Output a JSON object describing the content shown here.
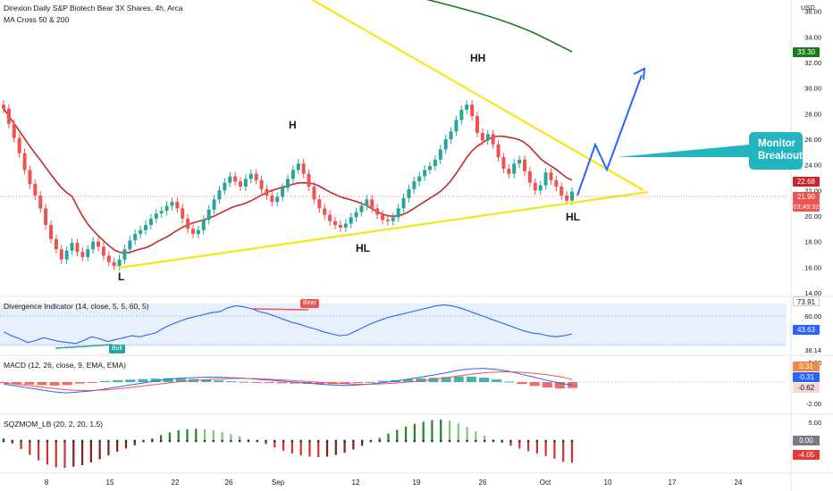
{
  "chart": {
    "symbol_line": "Direxion Daily S&P Biotech Bear 3X Shares, 4h, Arca",
    "ma_label": "MA Cross 50 & 200",
    "currency": "USD",
    "price_axis": [
      "36.00",
      "34.00",
      "32.00",
      "30.00",
      "28.00",
      "26.00",
      "24.00",
      "22.00",
      "20.00",
      "18.00",
      "16.00",
      "14.00"
    ],
    "price_tags": {
      "ma200": "33.30",
      "ma50": "22.68",
      "last": "21.90",
      "countdown": "03:49:32"
    },
    "annotations": {
      "H": "H",
      "HH": "HH",
      "HL_mid": "HL",
      "HL_right": "HL",
      "L": "L"
    },
    "callout": {
      "line1": "Monitor",
      "line2": "Breakout"
    },
    "x_axis": [
      "8",
      "15",
      "22",
      "26",
      "Sep",
      "12",
      "19",
      "26",
      "Oct",
      "10",
      "17",
      "24"
    ]
  },
  "divergence": {
    "label": "Divergence Indicator (14, close, 5, 5, 60, 5)",
    "bear": "Bear",
    "bull": "Bull",
    "axis": [
      "73.91",
      "60.00",
      "43.63",
      "38.14",
      "38.14"
    ]
  },
  "macd": {
    "label": "MACD (12, 26, close, 9, EMA, EMA)",
    "axis": [
      "2.00",
      "0.31",
      "-0.31",
      "-0.62",
      "-2.00"
    ]
  },
  "sqzmom": {
    "label": "SQZMOM_LB (20, 2, 20, 1.5)",
    "axis": [
      "5.00",
      "0.00",
      "-4.05"
    ]
  },
  "colors": {
    "bull": "#26a69a",
    "bear": "#ef5350",
    "ma50": "#c62828",
    "ma200": "#1b7a1b",
    "trend": "#f5e51b",
    "projection": "#2962ff",
    "callout": "#22b5c0"
  },
  "chart_data": [
    {
      "type": "line",
      "title": "Direxion Daily S&P Biotech Bear 3X Shares, 4h, Arca",
      "ylabel": "USD",
      "ylim": [
        14,
        36.5
      ],
      "series": [
        {
          "name": "close",
          "x_ticks": [
            "8",
            "15",
            "22",
            "26",
            "Sep",
            "12",
            "19",
            "26",
            "Oct"
          ],
          "values": [
            28.4,
            27.2,
            26.1,
            24.9,
            23.6,
            22.5,
            21.6,
            20.6,
            19.3,
            18.2,
            17.4,
            16.6,
            17.3,
            17.9,
            17.2,
            16.8,
            17.4,
            18.0,
            17.6,
            16.9,
            16.4,
            16.1,
            16.6,
            17.4,
            18.1,
            18.6,
            18.9,
            19.3,
            19.8,
            20.2,
            20.4,
            20.8,
            21.1,
            20.6,
            19.8,
            19.0,
            18.6,
            18.9,
            19.7,
            20.5,
            21.3,
            22.0,
            22.6,
            23.1,
            22.7,
            22.3,
            22.9,
            23.3,
            22.8,
            22.1,
            21.6,
            21.1,
            21.5,
            22.2,
            22.9,
            23.6,
            24.1,
            23.3,
            22.3,
            21.3,
            20.6,
            20.1,
            19.6,
            19.3,
            19.1,
            19.4,
            19.9,
            20.3,
            20.8,
            21.3,
            20.6,
            20.1,
            19.7,
            19.6,
            19.9,
            20.6,
            21.4,
            22.1,
            22.7,
            23.1,
            23.6,
            23.9,
            24.4,
            25.2,
            26.0,
            26.6,
            27.5,
            28.3,
            28.7,
            27.8,
            26.5,
            25.9,
            26.4,
            25.6,
            24.6,
            23.7,
            23.3,
            24.1,
            24.4,
            23.5,
            22.6,
            22.0,
            22.4,
            23.4,
            22.8,
            22.3,
            21.6,
            21.2,
            21.9
          ]
        }
      ]
    },
    {
      "type": "line",
      "title": "Divergence Indicator (14, close, 5, 5, 60, 5)",
      "ylim": [
        30,
        80
      ],
      "series": [
        {
          "name": "rsi",
          "values": [
            45,
            41,
            38,
            34,
            36,
            39,
            37,
            35,
            34,
            33,
            36,
            40,
            38,
            35,
            37,
            39,
            41,
            40,
            42,
            44,
            49,
            53,
            56,
            59,
            61,
            63,
            65,
            66,
            70,
            72,
            71,
            69,
            66,
            64,
            61,
            58,
            55,
            53,
            50,
            48,
            45,
            43,
            41,
            42,
            46,
            50,
            54,
            57,
            60,
            62,
            64,
            66,
            68,
            70,
            72,
            73,
            72,
            70,
            67,
            64,
            61,
            58,
            55,
            52,
            49,
            46,
            44,
            43,
            41,
            40,
            41,
            43
          ]
        }
      ]
    },
    {
      "type": "line",
      "title": "MACD (12, 26, close, 9, EMA, EMA)",
      "ylim": [
        -2.3,
        2.3
      ],
      "series": [
        {
          "name": "macd",
          "values": [
            -0.2,
            -0.4,
            -0.6,
            -0.8,
            -1.0,
            -1.1,
            -1.0,
            -0.9,
            -0.7,
            -0.5,
            -0.3,
            -0.1,
            0.1,
            0.3,
            0.4,
            0.45,
            0.5,
            0.5,
            0.45,
            0.4,
            0.3,
            0.2,
            0.1,
            0.0,
            -0.1,
            -0.2,
            -0.3,
            -0.35,
            -0.3,
            -0.2,
            -0.05,
            0.1,
            0.3,
            0.5,
            0.7,
            0.95,
            1.2,
            1.35,
            1.4,
            1.3,
            1.1,
            0.8,
            0.5,
            0.2,
            -0.1,
            -0.3
          ]
        },
        {
          "name": "signal",
          "values": [
            -0.1,
            -0.2,
            -0.35,
            -0.5,
            -0.65,
            -0.8,
            -0.85,
            -0.85,
            -0.8,
            -0.7,
            -0.55,
            -0.4,
            -0.25,
            -0.1,
            0.05,
            0.15,
            0.25,
            0.32,
            0.36,
            0.37,
            0.35,
            0.3,
            0.22,
            0.15,
            0.07,
            -0.02,
            -0.1,
            -0.17,
            -0.22,
            -0.22,
            -0.18,
            -0.1,
            0.0,
            0.12,
            0.27,
            0.44,
            0.63,
            0.8,
            0.95,
            1.03,
            1.05,
            1.0,
            0.9,
            0.75,
            0.55,
            0.3
          ]
        }
      ]
    },
    {
      "type": "bar",
      "title": "SQZMOM_LB (20, 2, 20, 1.5)",
      "ylim": [
        -5,
        5
      ],
      "series": [
        {
          "name": "momentum",
          "values": [
            0.5,
            -0.5,
            -1.5,
            -2.6,
            -3.6,
            -4.4,
            -4.9,
            -5.0,
            -4.8,
            -4.5,
            -4.0,
            -3.4,
            -2.7,
            -2.0,
            -1.4,
            -0.8,
            -0.2,
            0.5,
            1.1,
            1.6,
            2.0,
            2.2,
            2.3,
            2.2,
            2.0,
            1.7,
            1.3,
            0.9,
            0.4,
            0.0,
            -0.6,
            -1.2,
            -1.8,
            -2.3,
            -2.7,
            -2.9,
            -3.0,
            -2.9,
            -2.6,
            -2.2,
            -1.6,
            -0.9,
            -0.2,
            0.6,
            1.4,
            2.1,
            2.7,
            3.2,
            3.6,
            3.9,
            4.0,
            3.8,
            3.3,
            2.6,
            1.8,
            1.0,
            0.3,
            -0.3,
            -0.9,
            -1.4,
            -1.9,
            -2.3,
            -2.8,
            -3.3,
            -3.9,
            -4.05
          ]
        }
      ]
    }
  ]
}
